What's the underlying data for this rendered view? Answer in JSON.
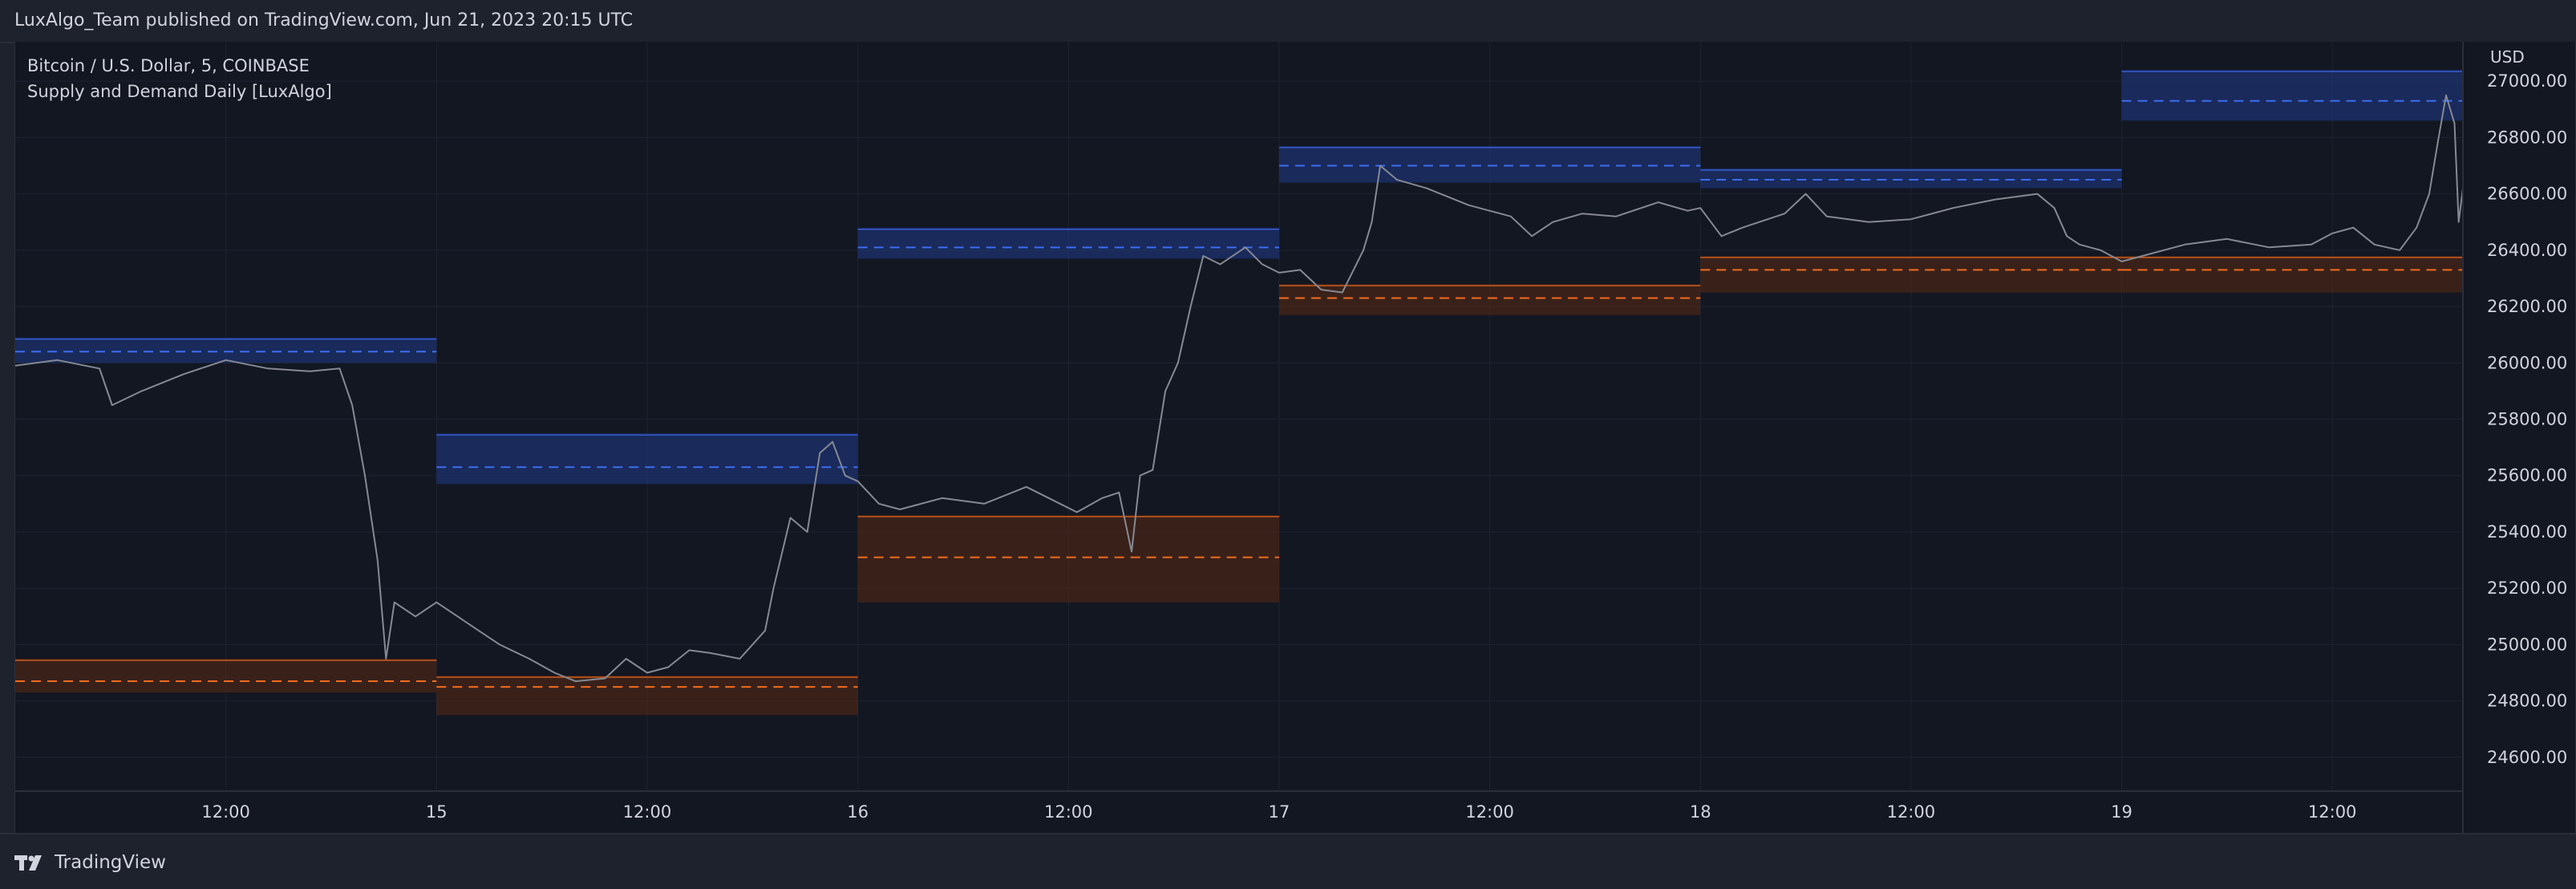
{
  "header": {
    "published_text": "LuxAlgo_Team published on TradingView.com, Jun 21, 2023 20:15 UTC"
  },
  "legend": {
    "symbol_line": "Bitcoin / U.S. Dollar, 5, COINBASE",
    "indicator_line": "Supply and Demand Daily [LuxAlgo]"
  },
  "footer": {
    "brand_icon": "tradingview-logo-icon",
    "brand_label": "TradingView"
  },
  "chart_data": {
    "type": "line",
    "currency_label": "USD",
    "ylim": [
      24480,
      27140
    ],
    "y_ticks": [
      "24600.00",
      "24800.00",
      "25000.00",
      "25200.00",
      "25400.00",
      "25600.00",
      "25800.00",
      "26000.00",
      "26200.00",
      "26400.00",
      "26600.00",
      "26800.00",
      "27000.00"
    ],
    "x_ticks": [
      {
        "label": "12:00",
        "day": 0.5
      },
      {
        "label": "15",
        "day": 1.0
      },
      {
        "label": "12:00",
        "day": 1.5
      },
      {
        "label": "16",
        "day": 2.0
      },
      {
        "label": "12:00",
        "day": 2.5
      },
      {
        "label": "17",
        "day": 3.0
      },
      {
        "label": "12:00",
        "day": 3.5
      },
      {
        "label": "18",
        "day": 4.0
      },
      {
        "label": "12:00",
        "day": 4.5
      },
      {
        "label": "19",
        "day": 5.0
      },
      {
        "label": "12:00",
        "day": 5.5
      }
    ],
    "xlim_days": [
      0.0,
      5.81
    ],
    "colors": {
      "price_line": "#868993",
      "supply_zone": "#1f3a8a",
      "supply_line": "#3d6cf0",
      "demand_zone": "#5a2a14",
      "demand_line": "#f26b1d",
      "background": "#131722",
      "grid": "#1f2331",
      "axis_text": "#d1d4dc"
    },
    "series": [
      {
        "values": [
          [
            0.0,
            25990
          ],
          [
            0.1,
            26010
          ],
          [
            0.2,
            25980
          ],
          [
            0.23,
            25850
          ],
          [
            0.3,
            25900
          ],
          [
            0.4,
            25960
          ],
          [
            0.5,
            26010
          ],
          [
            0.6,
            25980
          ],
          [
            0.7,
            25970
          ],
          [
            0.77,
            25980
          ],
          [
            0.8,
            25850
          ],
          [
            0.83,
            25600
          ],
          [
            0.86,
            25300
          ],
          [
            0.88,
            24950
          ],
          [
            0.9,
            25150
          ],
          [
            0.95,
            25100
          ],
          [
            1.0,
            25150
          ],
          [
            1.05,
            25100
          ],
          [
            1.1,
            25050
          ],
          [
            1.15,
            25000
          ],
          [
            1.22,
            24950
          ],
          [
            1.28,
            24900
          ],
          [
            1.33,
            24870
          ],
          [
            1.4,
            24880
          ],
          [
            1.45,
            24950
          ],
          [
            1.5,
            24900
          ],
          [
            1.55,
            24920
          ],
          [
            1.6,
            24980
          ],
          [
            1.65,
            24970
          ],
          [
            1.72,
            24950
          ],
          [
            1.78,
            25050
          ],
          [
            1.8,
            25200
          ],
          [
            1.84,
            25450
          ],
          [
            1.88,
            25400
          ],
          [
            1.91,
            25680
          ],
          [
            1.94,
            25720
          ],
          [
            1.97,
            25600
          ],
          [
            2.0,
            25580
          ],
          [
            2.05,
            25500
          ],
          [
            2.1,
            25480
          ],
          [
            2.2,
            25520
          ],
          [
            2.3,
            25500
          ],
          [
            2.4,
            25560
          ],
          [
            2.48,
            25500
          ],
          [
            2.52,
            25470
          ],
          [
            2.58,
            25520
          ],
          [
            2.62,
            25540
          ],
          [
            2.65,
            25330
          ],
          [
            2.67,
            25600
          ],
          [
            2.7,
            25620
          ],
          [
            2.73,
            25900
          ],
          [
            2.76,
            26000
          ],
          [
            2.79,
            26200
          ],
          [
            2.82,
            26380
          ],
          [
            2.86,
            26350
          ],
          [
            2.92,
            26410
          ],
          [
            2.96,
            26350
          ],
          [
            3.0,
            26320
          ],
          [
            3.05,
            26330
          ],
          [
            3.1,
            26260
          ],
          [
            3.15,
            26250
          ],
          [
            3.2,
            26400
          ],
          [
            3.22,
            26500
          ],
          [
            3.24,
            26700
          ],
          [
            3.28,
            26650
          ],
          [
            3.35,
            26620
          ],
          [
            3.45,
            26560
          ],
          [
            3.55,
            26520
          ],
          [
            3.6,
            26450
          ],
          [
            3.65,
            26500
          ],
          [
            3.72,
            26530
          ],
          [
            3.8,
            26520
          ],
          [
            3.9,
            26570
          ],
          [
            3.97,
            26540
          ],
          [
            4.0,
            26550
          ],
          [
            4.05,
            26450
          ],
          [
            4.1,
            26480
          ],
          [
            4.2,
            26530
          ],
          [
            4.25,
            26600
          ],
          [
            4.3,
            26520
          ],
          [
            4.4,
            26500
          ],
          [
            4.5,
            26510
          ],
          [
            4.6,
            26550
          ],
          [
            4.7,
            26580
          ],
          [
            4.8,
            26600
          ],
          [
            4.84,
            26550
          ],
          [
            4.87,
            26450
          ],
          [
            4.9,
            26420
          ],
          [
            4.95,
            26400
          ],
          [
            5.0,
            26360
          ],
          [
            5.05,
            26380
          ],
          [
            5.15,
            26420
          ],
          [
            5.25,
            26440
          ],
          [
            5.35,
            26410
          ],
          [
            5.45,
            26420
          ],
          [
            5.5,
            26460
          ],
          [
            5.55,
            26480
          ],
          [
            5.6,
            26420
          ],
          [
            5.66,
            26400
          ],
          [
            5.7,
            26480
          ],
          [
            5.73,
            26600
          ],
          [
            5.75,
            26780
          ],
          [
            5.77,
            26950
          ],
          [
            5.79,
            26850
          ],
          [
            5.8,
            26500
          ],
          [
            5.81,
            26620
          ]
        ]
      }
    ],
    "supply_zones": [
      {
        "x0": 0.0,
        "x1": 1.0,
        "top": 26090,
        "bottom": 26000,
        "level": 26040
      },
      {
        "x0": 1.0,
        "x1": 2.0,
        "top": 25750,
        "bottom": 25570,
        "level": 25630
      },
      {
        "x0": 2.0,
        "x1": 3.0,
        "top": 26480,
        "bottom": 26370,
        "level": 26410
      },
      {
        "x0": 3.0,
        "x1": 4.0,
        "top": 26770,
        "bottom": 26640,
        "level": 26700
      },
      {
        "x0": 4.0,
        "x1": 5.0,
        "top": 26690,
        "bottom": 26620,
        "level": 26650
      },
      {
        "x0": 5.0,
        "x1": 5.81,
        "top": 27040,
        "bottom": 26860,
        "level": 26930
      }
    ],
    "demand_zones": [
      {
        "x0": 0.0,
        "x1": 1.0,
        "top": 24950,
        "bottom": 24830,
        "level": 24870
      },
      {
        "x0": 1.0,
        "x1": 2.0,
        "top": 24890,
        "bottom": 24750,
        "level": 24850
      },
      {
        "x0": 2.0,
        "x1": 3.0,
        "top": 25460,
        "bottom": 25150,
        "level": 25310
      },
      {
        "x0": 3.0,
        "x1": 4.0,
        "top": 26280,
        "bottom": 26170,
        "level": 26230
      },
      {
        "x0": 4.0,
        "x1": 5.0,
        "top": 26380,
        "bottom": 26250,
        "level": 26330
      },
      {
        "x0": 5.0,
        "x1": 5.81,
        "top": 26380,
        "bottom": 26250,
        "level": 26330
      }
    ]
  }
}
